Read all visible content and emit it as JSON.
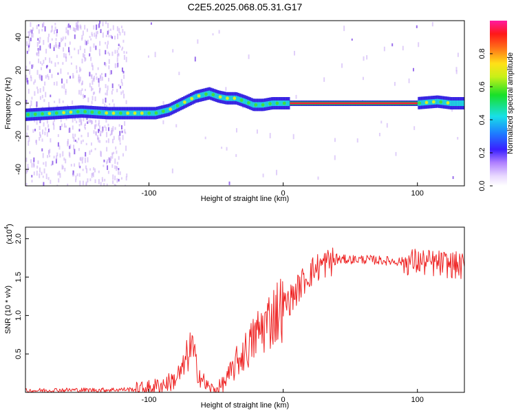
{
  "title": "C2E5.2025.068.05.31.G17",
  "colors": {
    "snr_line": "#ee2222",
    "axis": "#000000"
  },
  "chart_data": [
    {
      "type": "heatmap",
      "xlabel": "Height of straight line (km)",
      "ylabel": "Frequency (Hz)",
      "xlim": [
        -192,
        135
      ],
      "ylim": [
        -50,
        50
      ],
      "xticks": [
        "-100",
        "0",
        "100"
      ],
      "yticks": [
        "-40",
        "-20",
        "0",
        "20",
        "40"
      ],
      "ridge": {
        "x": [
          -192,
          -170,
          -150,
          -130,
          -110,
          -95,
          -85,
          -75,
          -65,
          -55,
          -48,
          -42,
          -35,
          -28,
          -22,
          -15,
          -8,
          0,
          10,
          50,
          100,
          115,
          125,
          135
        ],
        "y": [
          -7,
          -6,
          -5,
          -6,
          -6,
          -6,
          -4,
          0,
          4,
          6,
          4,
          3,
          3,
          1,
          -1,
          -1,
          0,
          0,
          0,
          0,
          0,
          1,
          0,
          0
        ]
      },
      "colorbar": {
        "label": "Normalized spectral amplitude",
        "range": [
          0,
          1
        ],
        "ticks": [
          "0.0",
          "0.2",
          "0.4",
          "0.6",
          "0.8"
        ]
      }
    },
    {
      "type": "line",
      "xlabel": "Height of straight line (km)",
      "ylabel": "SNR (10 * v/v)",
      "scale_label": "(x10",
      "scale_exp": "4",
      "xlim": [
        -192,
        135
      ],
      "ylim": [
        0,
        2.15
      ],
      "xticks": [
        "-100",
        "0",
        "100"
      ],
      "yticks": [
        "0.5",
        "1.0",
        "1.5",
        "2.0"
      ],
      "series": [
        {
          "x": [
            -192,
            -170,
            -140,
            -110,
            -100,
            -90,
            -82,
            -75,
            -71,
            -68,
            -65,
            -60,
            -55,
            -50,
            -45,
            -40,
            -35,
            -30,
            -25,
            -20,
            -15,
            -10,
            -5,
            0,
            5,
            10,
            15,
            20,
            25,
            30,
            35,
            40,
            45,
            50,
            60,
            70,
            80,
            90,
            100,
            110,
            120,
            130,
            135
          ],
          "y": [
            0.02,
            0.03,
            0.03,
            0.04,
            0.06,
            0.1,
            0.15,
            0.28,
            0.5,
            0.6,
            0.35,
            0.15,
            0.05,
            0.03,
            0.1,
            0.22,
            0.38,
            0.5,
            0.6,
            0.75,
            0.85,
            0.95,
            1.05,
            1.12,
            1.2,
            1.32,
            1.45,
            1.55,
            1.62,
            1.67,
            1.7,
            1.72,
            1.73,
            1.73,
            1.73,
            1.72,
            1.71,
            1.7,
            1.7,
            1.68,
            1.67,
            1.65,
            1.63
          ]
        }
      ]
    }
  ]
}
